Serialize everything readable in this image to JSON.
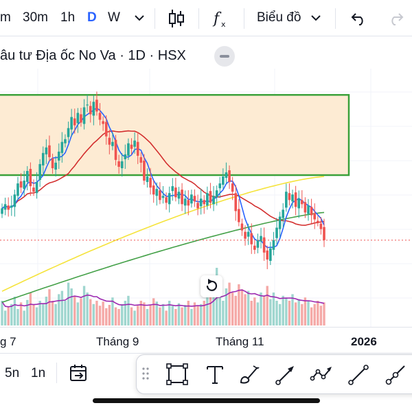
{
  "toolbar": {
    "intervals": [
      "m",
      "30m",
      "1h",
      "D",
      "W"
    ],
    "active_interval": "D",
    "chart_menu_label": "Biểu đồ",
    "icons": [
      "chevron-down-icon",
      "candles-icon",
      "indicators-icon",
      "chevron-down-icon",
      "undo-icon",
      "redo-icon"
    ]
  },
  "legend": {
    "title": "âu tư Địa ốc No Va · 1D · HSX"
  },
  "x_axis": {
    "labels": [
      "g 7",
      "Tháng 9",
      "Tháng 11",
      "2026"
    ]
  },
  "bottom": {
    "ranges": [
      "5n",
      "1n"
    ],
    "icons": [
      "goto-date-icon",
      "drag-handle-icon",
      "rectangle-icon",
      "text-icon",
      "brush-icon",
      "arrow-icon",
      "path-icon",
      "trend-line-icon",
      "ray-icon"
    ]
  },
  "colors": {
    "accent": "#2962ff",
    "up": "#26a69a",
    "down": "#ef5350",
    "zone_fill": "#fdebd3",
    "zone_border": "#3aa13a",
    "ma_fast": "#2962ff",
    "ma_mid": "#d32f2f",
    "ma_slow_yellow": "#f5e33b",
    "ma_slow_green": "#43a047",
    "volume_ma": "#9c27b0",
    "price_line": "#ef5350"
  },
  "chart_data": {
    "type": "candlestick",
    "x_labels": [
      "g 7",
      "Tháng 9",
      "Tháng 11",
      "2026"
    ],
    "zone": {
      "label": "",
      "color": "#3aa13a"
    },
    "close_series": [
      14.6,
      14.9,
      14.5,
      14.8,
      15.6,
      16.4,
      16.1,
      16.6,
      17.3,
      16.2,
      15.8,
      16.5,
      17.8,
      18.6,
      19.0,
      18.3,
      17.5,
      17.9,
      18.7,
      19.4,
      19.6,
      20.4,
      21.2,
      20.6,
      21.5,
      20.8,
      21.9,
      22.1,
      21.4,
      22.3,
      21.6,
      21.0,
      20.7,
      19.8,
      19.2,
      19.4,
      18.1,
      17.6,
      18.0,
      18.5,
      19.3,
      18.9,
      19.5,
      18.4,
      17.9,
      16.6,
      16.9,
      16.1,
      15.6,
      16.0,
      15.2,
      15.5,
      15.0,
      15.7,
      16.2,
      15.4,
      15.8,
      14.9,
      15.3,
      14.8,
      15.6,
      15.1,
      14.6,
      15.3,
      14.9,
      15.7,
      15.0,
      15.5,
      15.9,
      16.4,
      16.9,
      17.2,
      16.5,
      15.8,
      14.4,
      13.6,
      13.0,
      12.4,
      12.9,
      12.0,
      11.6,
      12.3,
      12.6,
      11.4,
      10.9,
      11.7,
      12.3,
      13.2,
      14.0,
      14.5,
      15.8,
      15.2,
      15.6,
      14.7,
      15.3,
      14.9,
      14.3,
      14.8,
      14.1,
      13.8,
      13.6,
      13.1,
      12.3
    ],
    "volume_series": [
      30,
      18,
      22,
      26,
      35,
      20,
      28,
      18,
      31,
      40,
      25,
      22,
      30,
      27,
      35,
      44,
      30,
      26,
      38,
      42,
      30,
      52,
      45,
      36,
      28,
      33,
      48,
      40,
      32,
      26,
      30,
      24,
      29,
      21,
      25,
      34,
      22,
      20,
      26,
      30,
      36,
      22,
      18,
      24,
      30,
      28,
      20,
      25,
      33,
      29,
      22,
      26,
      18,
      30,
      24,
      20,
      27,
      22,
      25,
      30,
      20,
      28,
      24,
      26,
      30,
      34,
      40,
      55,
      70,
      38,
      30,
      45,
      52,
      40,
      36,
      50,
      44,
      38,
      42,
      30,
      34,
      28,
      40,
      36,
      48,
      32,
      40,
      30,
      26,
      36,
      34,
      30,
      38,
      28,
      32,
      26,
      34,
      30,
      22,
      26,
      30,
      24,
      28
    ]
  }
}
